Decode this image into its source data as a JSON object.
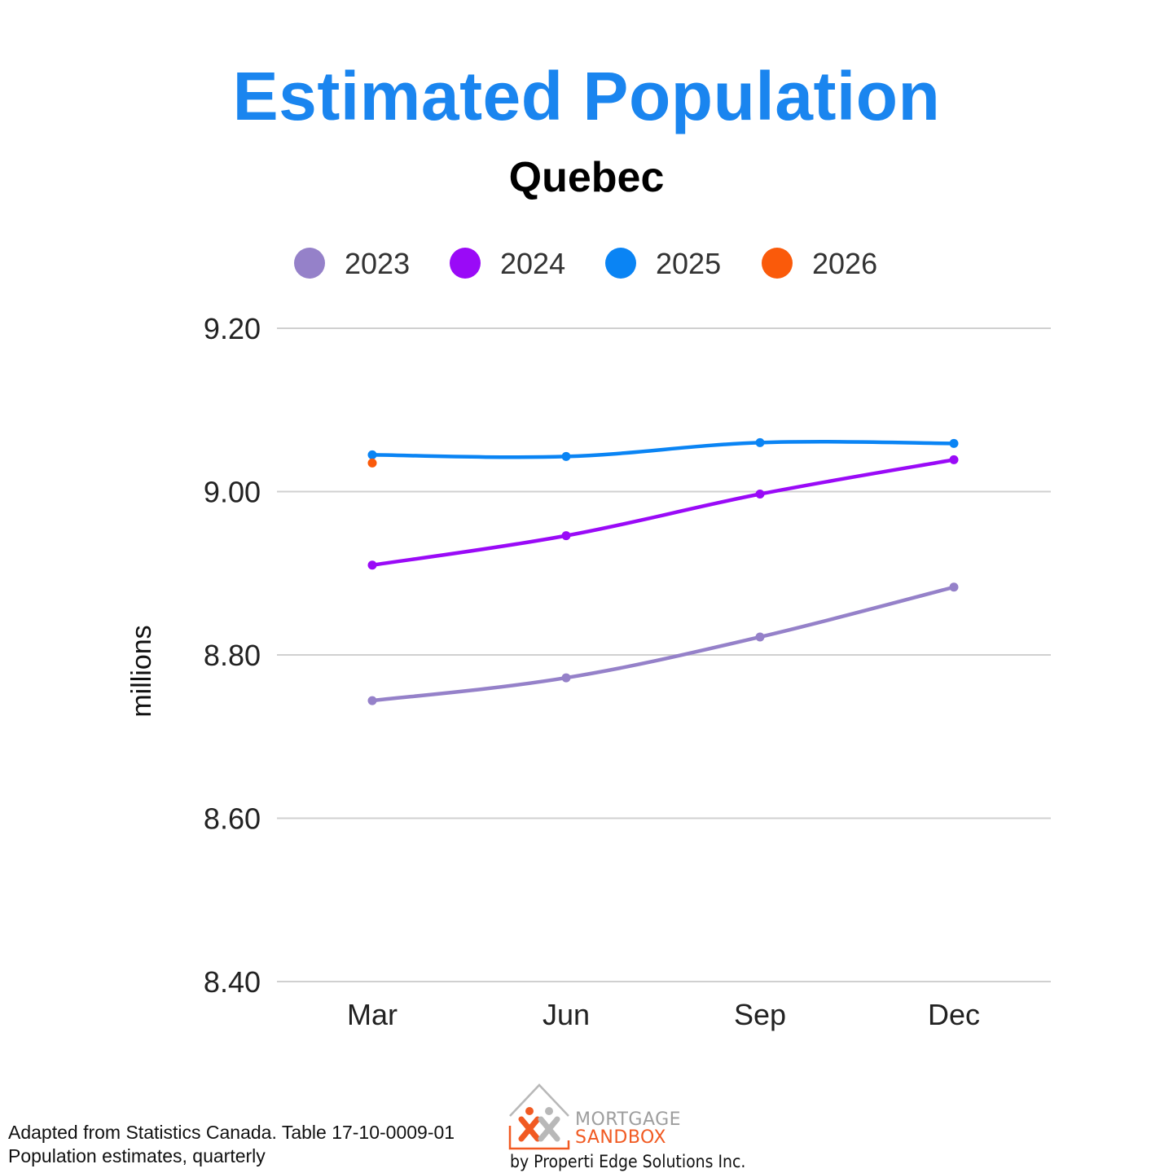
{
  "header": {
    "title": "Estimated Population",
    "subtitle": "Quebec"
  },
  "colors": {
    "title": "#1a85ef",
    "gridline": "#d0d0d0",
    "series": [
      "#9581c9",
      "#9a0af7",
      "#0a84f4",
      "#fa5a0a"
    ]
  },
  "chart_data": {
    "type": "line",
    "title": "Estimated Population",
    "subtitle": "Quebec",
    "xlabel": "",
    "ylabel": "millions",
    "categories": [
      "Mar",
      "Jun",
      "Sep",
      "Dec"
    ],
    "ylim": [
      8.4,
      9.2
    ],
    "yticks": [
      "9.20",
      "9.00",
      "8.80",
      "8.60",
      "8.40"
    ],
    "ytick_values": [
      9.2,
      9.0,
      8.8,
      8.6,
      8.4
    ],
    "grid": true,
    "legend_position": "top",
    "series": [
      {
        "name": "2023",
        "values": [
          8.744,
          8.772,
          8.822,
          8.883
        ]
      },
      {
        "name": "2024",
        "values": [
          8.91,
          8.946,
          8.997,
          9.039
        ]
      },
      {
        "name": "2025",
        "values": [
          9.045,
          9.043,
          9.06,
          9.059
        ]
      },
      {
        "name": "2026",
        "values": [
          9.035,
          null,
          null,
          null
        ]
      }
    ]
  },
  "footer": {
    "source_line1": "Adapted from Statistics Canada. Table 17-10-0009-01",
    "source_line2": "Population estimates, quarterly"
  },
  "logo": {
    "line1": "MORTGAGE",
    "line2": "SANDBOX",
    "byline": "by Properti Edge Solutions Inc."
  }
}
